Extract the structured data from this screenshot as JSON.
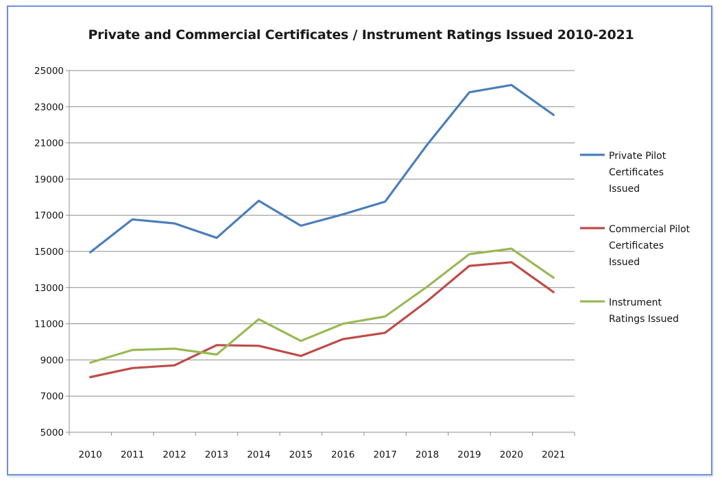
{
  "chart_data": {
    "type": "line",
    "title": "Private and Commercial Certificates / Instrument Ratings Issued 2010-2021",
    "xlabel": "",
    "ylabel": "",
    "categories": [
      "2010",
      "2011",
      "2012",
      "2013",
      "2014",
      "2015",
      "2016",
      "2017",
      "2018",
      "2019",
      "2020",
      "2021"
    ],
    "ylim": [
      5000,
      25000
    ],
    "yticks": [
      "5000",
      "7000",
      "9000",
      "11000",
      "13000",
      "15000",
      "17000",
      "19000",
      "21000",
      "23000",
      "25000"
    ],
    "grid": true,
    "legend_position": "right",
    "series": [
      {
        "name_lines": [
          "Private Pilot",
          "Certificates",
          "Issued"
        ],
        "color": "#4a7ebb",
        "values": [
          14950,
          16770,
          16550,
          15750,
          17800,
          16420,
          17050,
          17750,
          20900,
          23800,
          24200,
          22550
        ]
      },
      {
        "name_lines": [
          "Commercial Pilot",
          "Certificates",
          "Issued"
        ],
        "color": "#be4b48",
        "values": [
          8050,
          8550,
          8700,
          9820,
          9780,
          9220,
          10150,
          10500,
          12250,
          14200,
          14400,
          12750
        ]
      },
      {
        "name_lines": [
          "Instrument",
          "Ratings Issued"
        ],
        "color": "#98b954",
        "values": [
          8850,
          9550,
          9620,
          9300,
          11250,
          10050,
          11000,
          11400,
          13050,
          14850,
          15150,
          13550
        ]
      }
    ]
  }
}
